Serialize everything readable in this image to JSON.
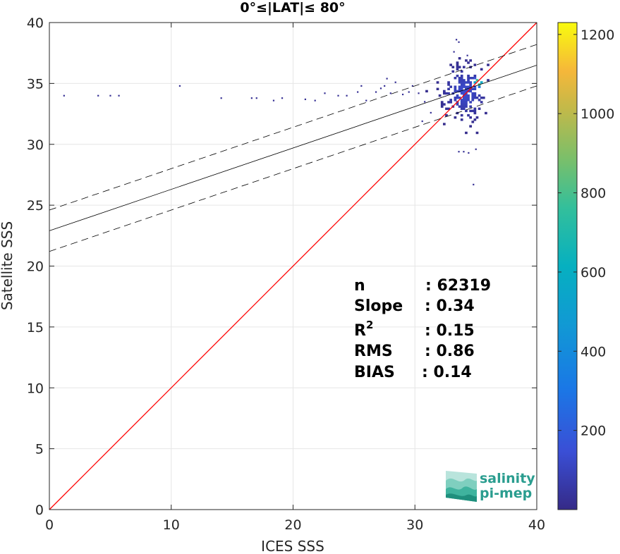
{
  "chart_data": {
    "type": "heatmap",
    "title": "0°≤|LAT|≤ 80°",
    "xlabel": "ICES SSS",
    "ylabel": "Satellite SSS",
    "xlim": [
      0,
      40
    ],
    "ylim": [
      0,
      40
    ],
    "xticks": [
      "0",
      "10",
      "20",
      "30",
      "40"
    ],
    "yticks": [
      "0",
      "5",
      "10",
      "15",
      "20",
      "25",
      "30",
      "35",
      "40"
    ],
    "grid": true,
    "colorbar": {
      "range": [
        0,
        1230
      ],
      "ticks": [
        "200",
        "400",
        "600",
        "800",
        "1000",
        "1200"
      ],
      "colormap": "parula"
    },
    "lines": {
      "identity": {
        "slope": 1,
        "intercept": 0,
        "color": "#ff0000"
      },
      "fit": {
        "slope": 0.34,
        "intercept": 22.9,
        "color": "#000000"
      },
      "fit_upper": {
        "slope": 0.34,
        "intercept": 24.6,
        "style": "dashed"
      },
      "fit_lower": {
        "slope": 0.34,
        "intercept": 21.2,
        "style": "dashed"
      }
    },
    "stats": [
      {
        "label": "n",
        "value": ": 62319"
      },
      {
        "label": "Slope",
        "value": ": 0.34"
      },
      {
        "label": "R",
        "sup": "2",
        "value": ": 0.15"
      },
      {
        "label": "RMS",
        "value": ": 0.86"
      },
      {
        "label": "BIAS",
        "value": ": 0.14"
      }
    ],
    "outlier_points": [
      [
        1.2,
        34.0
      ],
      [
        4.0,
        34.0
      ],
      [
        5.0,
        34.0
      ],
      [
        5.7,
        34.0
      ],
      [
        10.7,
        34.8
      ],
      [
        14.1,
        33.8
      ],
      [
        16.6,
        33.8
      ],
      [
        17.0,
        33.8
      ],
      [
        18.4,
        33.6
      ],
      [
        19.1,
        33.8
      ],
      [
        21.0,
        33.7
      ],
      [
        21.8,
        33.6
      ],
      [
        22.6,
        34.2
      ],
      [
        23.7,
        34.0
      ],
      [
        24.4,
        34.0
      ],
      [
        25.3,
        34.3
      ],
      [
        25.6,
        34.8
      ],
      [
        26.0,
        33.6
      ],
      [
        26.8,
        34.3
      ],
      [
        27.2,
        34.6
      ],
      [
        27.5,
        34.8
      ],
      [
        27.7,
        35.4
      ],
      [
        28.0,
        34.2
      ],
      [
        28.4,
        35.1
      ],
      [
        29.0,
        34.1
      ],
      [
        29.5,
        34.3
      ],
      [
        29.8,
        34.8
      ],
      [
        30.3,
        34.2
      ],
      [
        30.8,
        33.5
      ],
      [
        31.3,
        32.6
      ],
      [
        30.6,
        31.9
      ],
      [
        33.6,
        29.4
      ],
      [
        34.0,
        29.4
      ],
      [
        34.4,
        29.3
      ],
      [
        35.0,
        29.6
      ],
      [
        34.8,
        26.7
      ],
      [
        33.4,
        38.6
      ],
      [
        33.6,
        38.4
      ],
      [
        33.2,
        37.6
      ],
      [
        34.3,
        37.3
      ]
    ],
    "dense_cloud": {
      "x_range": [
        30.5,
        35.9
      ],
      "y_range": [
        30.5,
        38.0
      ],
      "center": [
        34.0,
        34.2
      ],
      "peak_location": [
        35.1,
        35.0
      ],
      "peak_count": 1230
    }
  },
  "logo": {
    "line1": "salinity",
    "line2": "pi-mep"
  }
}
